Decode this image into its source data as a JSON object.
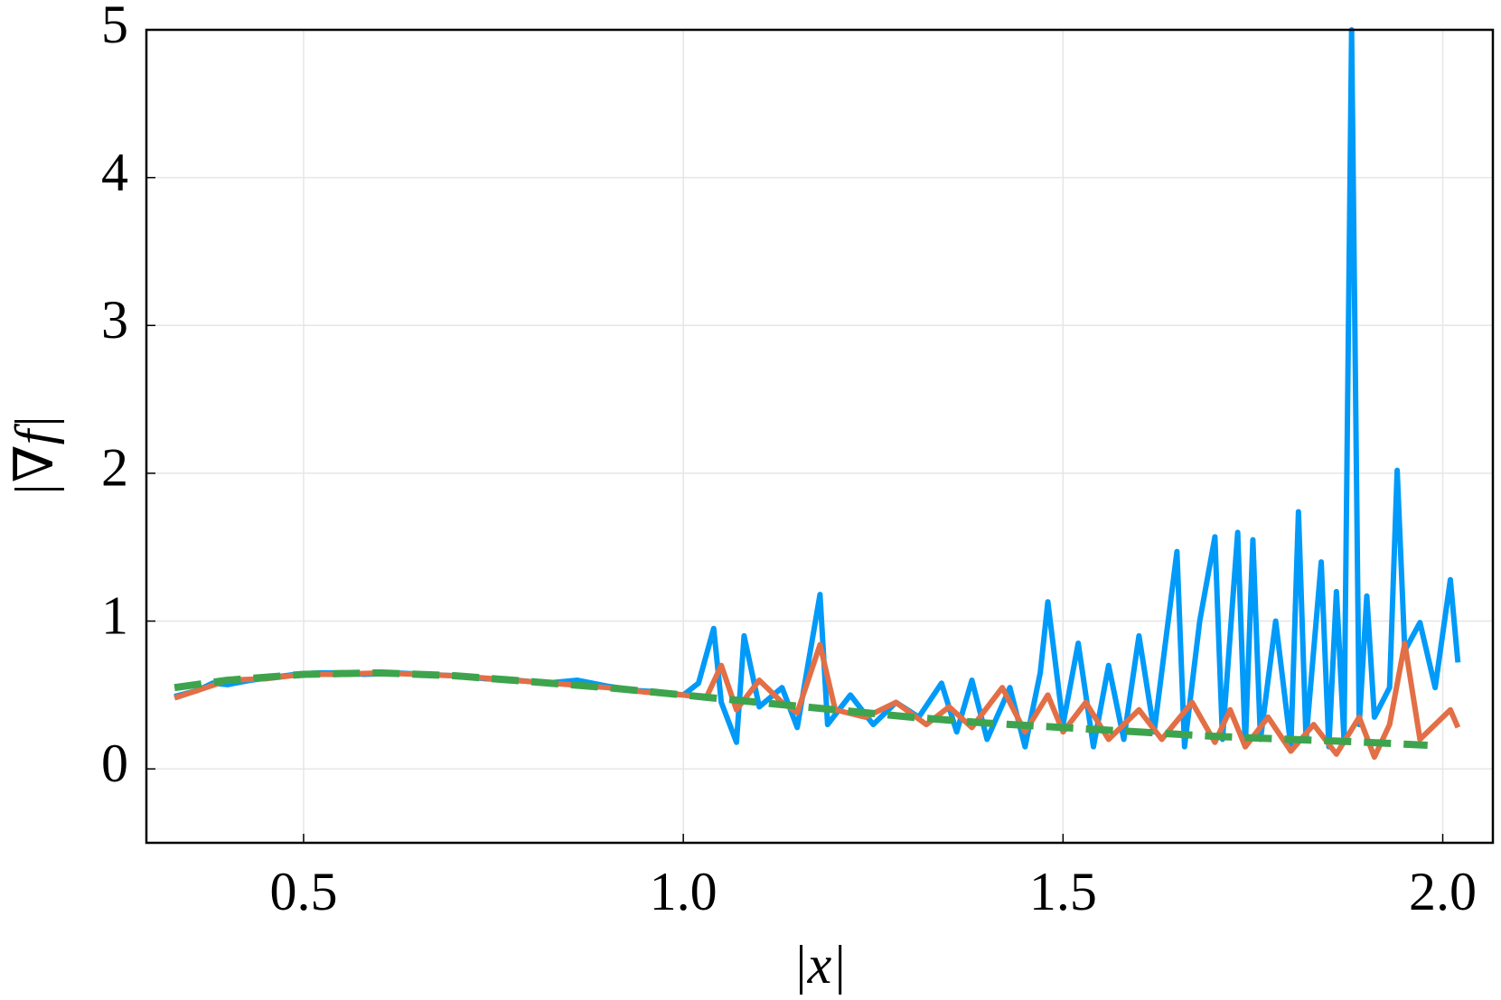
{
  "chart_data": {
    "type": "line",
    "xlabel": "|x|",
    "ylabel": "|∇f|",
    "xlim": [
      0.293,
      2.066
    ],
    "ylim": [
      -0.5,
      5
    ],
    "xticks": [
      0.5,
      {
        "value": 1.0,
        "label": "1.0"
      },
      1.5,
      {
        "value": 2.0,
        "label": "2.0"
      }
    ],
    "yticks": [
      0,
      1,
      2,
      3,
      4,
      5
    ],
    "grid": true,
    "series": [
      {
        "color": "#009af9",
        "dash": false,
        "x": [
          0.33,
          0.36,
          0.38,
          0.4,
          0.43,
          0.46,
          0.49,
          0.52,
          0.55,
          0.58,
          0.62,
          0.66,
          0.7,
          0.74,
          0.78,
          0.82,
          0.86,
          0.9,
          0.94,
          0.97,
          1.0,
          1.02,
          1.04,
          1.05,
          1.07,
          1.08,
          1.1,
          1.13,
          1.15,
          1.18,
          1.19,
          1.22,
          1.25,
          1.28,
          1.31,
          1.34,
          1.36,
          1.38,
          1.4,
          1.43,
          1.45,
          1.47,
          1.48,
          1.5,
          1.52,
          1.54,
          1.56,
          1.58,
          1.6,
          1.62,
          1.65,
          1.66,
          1.68,
          1.7,
          1.71,
          1.73,
          1.74,
          1.75,
          1.76,
          1.78,
          1.8,
          1.81,
          1.82,
          1.84,
          1.85,
          1.86,
          1.87,
          1.88,
          1.89,
          1.9,
          1.91,
          1.93,
          1.94,
          1.95,
          1.97,
          1.99,
          2.01,
          2.02
        ],
        "values": [
          0.49,
          0.53,
          0.58,
          0.57,
          0.6,
          0.62,
          0.64,
          0.65,
          0.65,
          0.64,
          0.65,
          0.64,
          0.63,
          0.61,
          0.6,
          0.58,
          0.6,
          0.56,
          0.53,
          0.52,
          0.5,
          0.58,
          0.95,
          0.45,
          0.18,
          0.9,
          0.42,
          0.55,
          0.28,
          1.18,
          0.3,
          0.5,
          0.3,
          0.45,
          0.35,
          0.58,
          0.25,
          0.6,
          0.2,
          0.55,
          0.15,
          0.65,
          1.13,
          0.3,
          0.85,
          0.15,
          0.7,
          0.2,
          0.9,
          0.25,
          1.47,
          0.15,
          1.0,
          1.57,
          0.2,
          1.6,
          0.15,
          1.55,
          0.2,
          1.0,
          0.15,
          1.74,
          0.2,
          1.4,
          0.15,
          1.2,
          0.2,
          5.0,
          0.3,
          1.17,
          0.35,
          0.55,
          2.02,
          0.8,
          0.99,
          0.55,
          1.28,
          0.72
        ]
      },
      {
        "color": "#e26f46",
        "dash": false,
        "x": [
          0.33,
          0.36,
          0.4,
          0.45,
          0.5,
          0.55,
          0.6,
          0.65,
          0.7,
          0.75,
          0.8,
          0.85,
          0.9,
          0.95,
          1.0,
          1.03,
          1.05,
          1.07,
          1.1,
          1.13,
          1.15,
          1.18,
          1.2,
          1.24,
          1.28,
          1.32,
          1.35,
          1.38,
          1.42,
          1.45,
          1.48,
          1.5,
          1.53,
          1.56,
          1.6,
          1.63,
          1.67,
          1.7,
          1.72,
          1.74,
          1.77,
          1.8,
          1.83,
          1.86,
          1.89,
          1.91,
          1.93,
          1.95,
          1.97,
          2.01,
          2.02
        ],
        "values": [
          0.48,
          0.53,
          0.6,
          0.61,
          0.64,
          0.64,
          0.65,
          0.64,
          0.63,
          0.61,
          0.59,
          0.57,
          0.55,
          0.52,
          0.5,
          0.48,
          0.7,
          0.4,
          0.6,
          0.45,
          0.38,
          0.84,
          0.4,
          0.35,
          0.45,
          0.3,
          0.42,
          0.28,
          0.55,
          0.25,
          0.5,
          0.25,
          0.45,
          0.2,
          0.4,
          0.2,
          0.45,
          0.18,
          0.4,
          0.15,
          0.35,
          0.12,
          0.3,
          0.1,
          0.35,
          0.08,
          0.3,
          0.85,
          0.2,
          0.4,
          0.28
        ]
      },
      {
        "color": "#3da44d",
        "dash": true,
        "x": [
          0.33,
          0.4,
          0.5,
          0.6,
          0.7,
          0.8,
          0.9,
          1.0,
          1.1,
          1.2,
          1.3,
          1.4,
          1.5,
          1.6,
          1.7,
          1.8,
          1.9,
          1.98
        ],
        "values": [
          0.55,
          0.6,
          0.64,
          0.65,
          0.63,
          0.59,
          0.55,
          0.5,
          0.45,
          0.4,
          0.35,
          0.31,
          0.28,
          0.25,
          0.22,
          0.2,
          0.18,
          0.16
        ]
      }
    ]
  }
}
